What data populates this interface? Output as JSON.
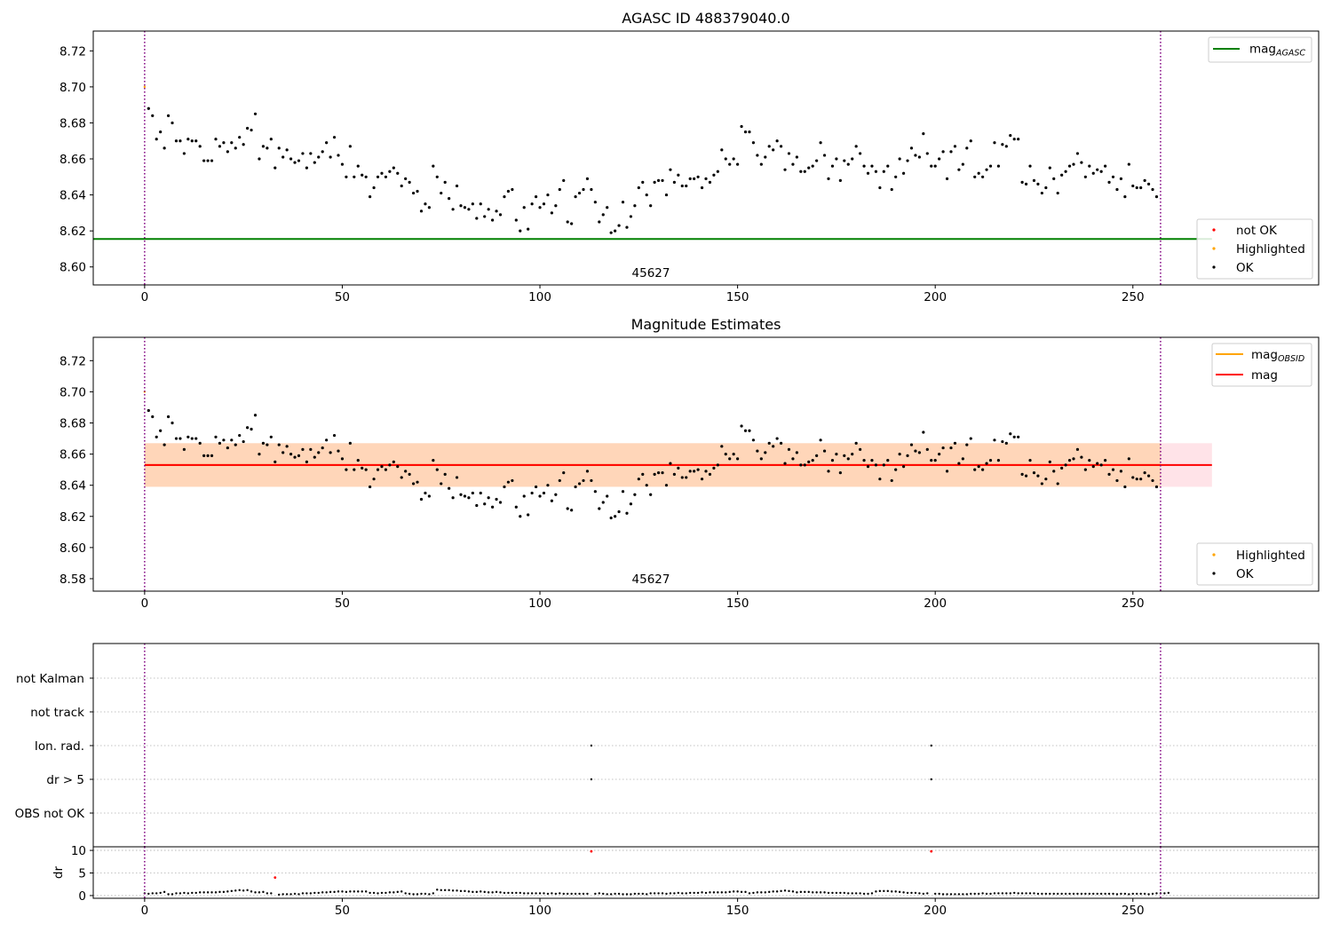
{
  "chart_data": [
    {
      "type": "scatter",
      "title": "AGASC ID 488379040.0",
      "xlabel": "",
      "ylabel": "",
      "xlim": [
        -13,
        297
      ],
      "ylim": [
        8.59,
        8.731
      ],
      "x_ticks": [
        "0",
        "50",
        "100",
        "150",
        "200",
        "250"
      ],
      "y_ticks": [
        "8.60",
        "8.62",
        "8.64",
        "8.66",
        "8.68",
        "8.70",
        "8.72"
      ],
      "obsid_label": "45627",
      "obsid_boundaries": [
        0,
        257
      ],
      "lines": [
        {
          "name": "mag",
          "sub": "AGASC",
          "y": 8.6155,
          "x_range": [
            -13,
            270
          ],
          "color": "#008000"
        }
      ],
      "legend_lines_position": "upper right",
      "legend_points_position": "lower right",
      "legend_points": [
        {
          "label": "not OK",
          "color": "#ff0000"
        },
        {
          "label": "Highlighted",
          "color": "#ffa500"
        },
        {
          "label": "OK",
          "color": "#000000"
        }
      ],
      "highlighted_points": [
        [
          0,
          8.7
        ]
      ],
      "grid": false
    },
    {
      "type": "scatter",
      "title": "Magnitude Estimates",
      "xlabel": "",
      "ylabel": "",
      "xlim": [
        -13,
        297
      ],
      "ylim": [
        8.572,
        8.735
      ],
      "x_ticks": [
        "0",
        "50",
        "100",
        "150",
        "200",
        "250"
      ],
      "y_ticks": [
        "8.58",
        "8.60",
        "8.62",
        "8.64",
        "8.66",
        "8.68",
        "8.70",
        "8.72"
      ],
      "obsid_label": "45627",
      "obsid_boundaries": [
        0,
        257
      ],
      "lines": [
        {
          "name": "mag",
          "sub": "OBSID",
          "y": 8.653,
          "x_range": [
            0,
            257
          ],
          "color": "#ffa500"
        },
        {
          "name": "mag",
          "sub": "",
          "y": 8.653,
          "x_range": [
            0,
            270
          ],
          "color": "#ff0000"
        }
      ],
      "bands": [
        {
          "y_low": 8.639,
          "y_high": 8.667,
          "x_range": [
            0,
            270
          ],
          "color": "#ffc0cb"
        },
        {
          "y_low": 8.639,
          "y_high": 8.667,
          "x_range": [
            0,
            257
          ],
          "color": "#ffa500"
        }
      ],
      "legend_lines_position": "upper right",
      "legend_points_position": "lower right",
      "legend_points": [
        {
          "label": "Highlighted",
          "color": "#ffa500"
        },
        {
          "label": "OK",
          "color": "#000000"
        }
      ],
      "highlighted_points": [
        [
          0,
          8.7
        ]
      ],
      "grid": false
    },
    {
      "type": "scatter",
      "title": "",
      "xlim": [
        -13,
        297
      ],
      "categories": [
        "not Kalman",
        "not track",
        "Ion. rad.",
        "dr > 5",
        "OBS not OK"
      ],
      "flag_points": [
        {
          "category": "Ion. rad.",
          "x": [
            113,
            199
          ]
        },
        {
          "category": "dr > 5",
          "x": [
            113,
            199
          ]
        }
      ],
      "obsid_boundaries": [
        0,
        257
      ],
      "grid": true
    },
    {
      "type": "scatter",
      "title": "",
      "xlabel": "",
      "ylabel": "dr",
      "xlim": [
        -13,
        297
      ],
      "ylim": [
        -0.6,
        10.8
      ],
      "x_ticks": [
        "0",
        "50",
        "100",
        "150",
        "200",
        "250"
      ],
      "y_ticks": [
        "0",
        "5",
        "10"
      ],
      "red_points": [
        [
          33,
          4.0
        ],
        [
          113,
          9.8
        ],
        [
          199,
          9.8
        ]
      ],
      "obsid_boundaries": [
        0,
        257
      ],
      "grid": true
    }
  ],
  "mag_series": {
    "x_start": 0,
    "y": [
      8.7,
      8.688,
      8.684,
      8.671,
      8.675,
      8.666,
      8.684,
      8.68,
      8.67,
      8.67,
      8.663,
      8.671,
      8.67,
      8.67,
      8.667,
      8.659,
      8.659,
      8.659,
      8.671,
      8.667,
      8.669,
      8.664,
      8.669,
      8.666,
      8.672,
      8.668,
      8.677,
      8.676,
      8.685,
      8.66,
      8.667,
      8.666,
      8.671,
      8.655,
      8.666,
      8.661,
      8.665,
      8.66,
      8.658,
      8.659,
      8.663,
      8.655,
      8.663,
      8.658,
      8.661,
      8.664,
      8.669,
      8.661,
      8.672,
      8.662,
      8.657,
      8.65,
      8.667,
      8.65,
      8.656,
      8.651,
      8.65,
      8.639,
      8.644,
      8.65,
      8.652,
      8.65,
      8.653,
      8.655,
      8.652,
      8.645,
      8.649,
      8.647,
      8.641,
      8.642,
      8.631,
      8.635,
      8.633,
      8.656,
      8.65,
      8.641,
      8.647,
      8.638,
      8.632,
      8.645,
      8.634,
      8.633,
      8.632,
      8.635,
      8.627,
      8.635,
      8.628,
      8.632,
      8.626,
      8.631,
      8.629,
      8.639,
      8.642,
      8.643,
      8.626,
      8.62,
      8.633,
      8.621,
      8.635,
      8.639,
      8.633,
      8.635,
      8.64,
      8.63,
      8.634,
      8.643,
      8.648,
      8.625,
      8.624,
      8.639,
      8.641,
      8.643,
      8.649,
      8.643,
      8.636,
      8.625,
      8.629,
      8.633,
      8.619,
      8.62,
      8.623,
      8.636,
      8.622,
      8.628,
      8.634,
      8.644,
      8.647,
      8.64,
      8.634,
      8.647,
      8.648,
      8.648,
      8.64,
      8.654,
      8.647,
      8.651,
      8.645,
      8.645,
      8.649,
      8.649,
      8.65,
      8.644,
      8.649,
      8.647,
      8.651,
      8.653,
      8.665,
      8.66,
      8.657,
      8.66,
      8.657,
      8.678,
      8.675,
      8.675,
      8.669,
      8.662,
      8.657,
      8.661,
      8.667,
      8.665,
      8.67,
      8.667,
      8.654,
      8.663,
      8.657,
      8.661,
      8.653,
      8.653,
      8.655,
      8.656,
      8.659,
      8.669,
      8.662,
      8.649,
      8.656,
      8.66,
      8.648,
      8.659,
      8.657,
      8.66,
      8.667,
      8.663,
      8.656,
      8.652,
      8.656,
      8.653,
      8.644,
      8.653,
      8.656,
      8.643,
      8.65,
      8.66,
      8.652,
      8.659,
      8.666,
      8.662,
      8.661,
      8.674,
      8.663,
      8.656,
      8.656,
      8.66,
      8.664,
      8.649,
      8.664,
      8.667,
      8.654,
      8.657,
      8.666,
      8.67,
      8.65,
      8.652,
      8.65,
      8.654,
      8.656,
      8.669,
      8.656,
      8.668,
      8.667,
      8.673,
      8.671,
      8.671,
      8.647,
      8.646,
      8.656,
      8.648,
      8.646,
      8.641,
      8.644,
      8.655,
      8.649,
      8.641,
      8.651,
      8.653,
      8.656,
      8.657,
      8.663,
      8.658,
      8.65,
      8.656,
      8.652,
      8.654,
      8.653,
      8.656,
      8.647,
      8.65,
      8.643,
      8.649,
      8.639,
      8.657,
      8.645,
      8.644,
      8.644,
      8.648,
      8.646,
      8.643,
      8.639
    ]
  },
  "dr_series": {
    "x_start": 0,
    "y": [
      0.5,
      0.4,
      0.5,
      0.5,
      0.6,
      0.8,
      0.3,
      0.3,
      0.5,
      0.5,
      0.6,
      0.5,
      0.6,
      0.6,
      0.7,
      0.7,
      0.7,
      0.7,
      0.7,
      0.8,
      0.8,
      0.9,
      1.0,
      1.1,
      1.2,
      1.1,
      1.2,
      0.9,
      0.7,
      0.7,
      0.8,
      0.5,
      0.5,
      0.5,
      0.2,
      0.3,
      0.3,
      0.3,
      0.4,
      0.3,
      0.5,
      0.5,
      0.5,
      0.6,
      0.6,
      0.7,
      0.7,
      0.8,
      0.8,
      0.9,
      0.9,
      0.8,
      0.9,
      0.9,
      0.9,
      0.9,
      0.9,
      0.6,
      0.6,
      0.5,
      0.6,
      0.6,
      0.7,
      0.7,
      0.8,
      0.9,
      0.5,
      0.4,
      0.3,
      0.3,
      0.4,
      0.4,
      0.3,
      0.5,
      1.3,
      1.2,
      1.2,
      1.2,
      1.1,
      1.1,
      1.0,
      1.0,
      0.9,
      0.8,
      0.8,
      0.9,
      0.8,
      0.7,
      0.7,
      0.8,
      0.7,
      0.6,
      0.6,
      0.6,
      0.6,
      0.6,
      0.5,
      0.5,
      0.5,
      0.5,
      0.5,
      0.5,
      0.4,
      0.5,
      0.4,
      0.5,
      0.4,
      0.4,
      0.4,
      0.4,
      0.4,
      0.4,
      0.4,
      0.5,
      0.4,
      0.5,
      0.4,
      0.3,
      0.3,
      0.4,
      0.4,
      0.3,
      0.3,
      0.3,
      0.4,
      0.4,
      0.4,
      0.3,
      0.5,
      0.5,
      0.5,
      0.5,
      0.4,
      0.5,
      0.5,
      0.6,
      0.5,
      0.5,
      0.6,
      0.6,
      0.6,
      0.7,
      0.6,
      0.7,
      0.7,
      0.7,
      0.7,
      0.7,
      0.8,
      0.9,
      0.9,
      0.8,
      0.8,
      0.5,
      0.6,
      0.7,
      0.7,
      0.7,
      0.8,
      0.9,
      0.9,
      1.0,
      1.1,
      1.0,
      0.9,
      0.7,
      0.8,
      0.8,
      0.8,
      0.7,
      0.7,
      0.7,
      0.7,
      0.6,
      0.6,
      0.6,
      0.6,
      0.6,
      0.5,
      0.5,
      0.5,
      0.5,
      0.4,
      0.4,
      0.5,
      0.9,
      1.0,
      1.0,
      1.0,
      0.9,
      0.9,
      0.8,
      0.7,
      0.6,
      0.6,
      0.6,
      0.5,
      0.4,
      0.5,
      0.4,
      0.4,
      0.4,
      0.3,
      0.3,
      0.3,
      0.3,
      0.3,
      0.3,
      0.3,
      0.4,
      0.4,
      0.4,
      0.5,
      0.4,
      0.4,
      0.5,
      0.5,
      0.5,
      0.5,
      0.5,
      0.6,
      0.5,
      0.5,
      0.5,
      0.5,
      0.5,
      0.4,
      0.4,
      0.4,
      0.4,
      0.4,
      0.4,
      0.4,
      0.4,
      0.4,
      0.4,
      0.4,
      0.4,
      0.4,
      0.4,
      0.4,
      0.4,
      0.4,
      0.4,
      0.4,
      0.4,
      0.3,
      0.4,
      0.4,
      0.3,
      0.4,
      0.4,
      0.4,
      0.4,
      0.3,
      0.4,
      0.5,
      0.5,
      0.5,
      0.6
    ]
  }
}
